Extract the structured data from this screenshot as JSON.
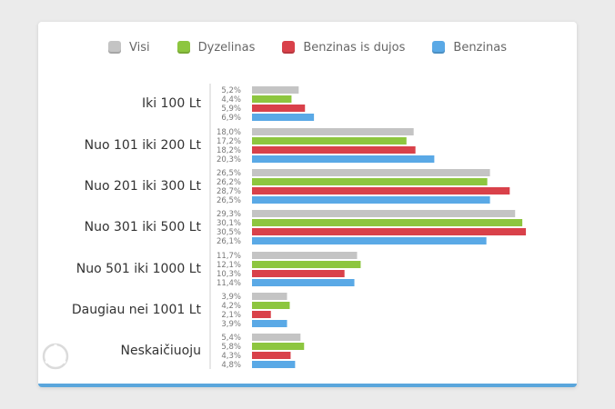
{
  "chart_data": {
    "type": "bar",
    "orientation": "horizontal",
    "legend_position": "top",
    "categories": [
      "Iki 100 Lt",
      "Nuo 101 iki 200 Lt",
      "Nuo 201 iki 300 Lt",
      "Nuo 301 iki 500 Lt",
      "Nuo 501 iki 1000 Lt",
      "Daugiau nei 1001 Lt",
      "Neskaičiuoju"
    ],
    "series": [
      {
        "name": "Visi",
        "color": "#c4c4c4",
        "values": [
          5.2,
          18.0,
          26.5,
          29.3,
          11.7,
          3.9,
          5.4
        ],
        "labels": [
          "5,2%",
          "18,0%",
          "26,5%",
          "29,3%",
          "11,7%",
          "3,9%",
          "5,4%"
        ]
      },
      {
        "name": "Dyzelinas",
        "color": "#8dc63f",
        "values": [
          4.4,
          17.2,
          26.2,
          30.1,
          12.1,
          4.2,
          5.8
        ],
        "labels": [
          "4,4%",
          "17,2%",
          "26,2%",
          "30,1%",
          "12,1%",
          "4,2%",
          "5,8%"
        ]
      },
      {
        "name": "Benzinas is dujos",
        "color": "#d9414a",
        "values": [
          5.9,
          18.2,
          28.7,
          30.5,
          10.3,
          2.1,
          4.3
        ],
        "labels": [
          "5,9%",
          "18,2%",
          "28,7%",
          "30,5%",
          "10,3%",
          "2,1%",
          "4,3%"
        ]
      },
      {
        "name": "Benzinas",
        "color": "#5aa9e6",
        "values": [
          6.9,
          20.3,
          26.5,
          26.1,
          11.4,
          3.9,
          4.8
        ],
        "labels": [
          "6,9%",
          "20,3%",
          "26,5%",
          "26,1%",
          "11,4%",
          "3,9%",
          "4,8%"
        ]
      }
    ],
    "xlim": [
      0,
      31
    ],
    "grid": false
  }
}
